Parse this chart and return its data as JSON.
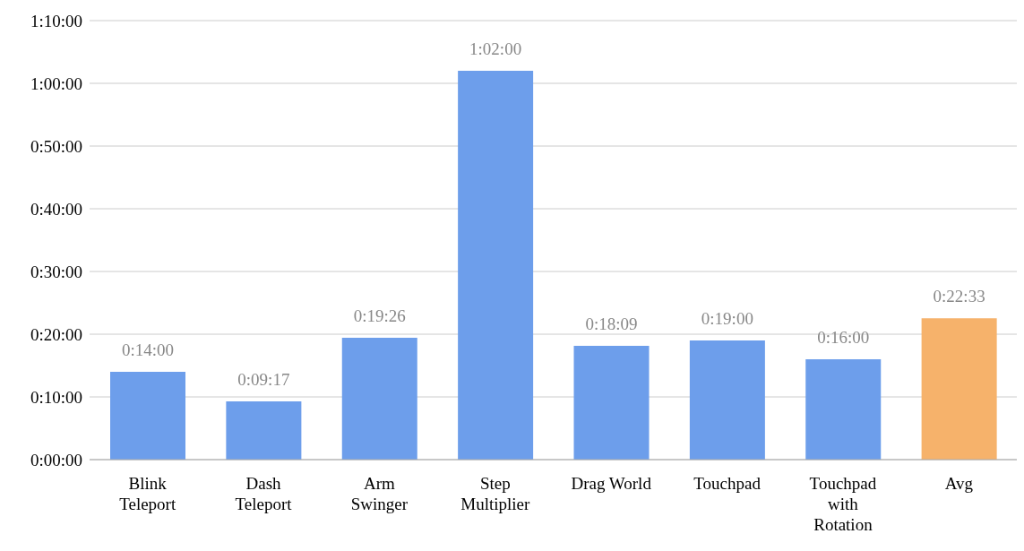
{
  "chart_data": {
    "type": "bar",
    "categories": [
      "Blink Teleport",
      "Dash Teleport",
      "Arm Swinger",
      "Step Multiplier",
      "Drag World",
      "Touchpad",
      "Touchpad with Rotation",
      "Avg"
    ],
    "values": [
      14,
      9.2833,
      19.4333,
      62,
      18.15,
      19,
      16,
      22.55
    ],
    "colors": [
      "#6d9eeb",
      "#6d9eeb",
      "#6d9eeb",
      "#6d9eeb",
      "#6d9eeb",
      "#6d9eeb",
      "#6d9eeb",
      "#f6b26b"
    ],
    "value_labels": [
      "0:14:00",
      "0:09:17",
      "0:19:26",
      "1:02:00",
      "0:18:09",
      "0:19:00",
      "0:16:00",
      "0:22:33"
    ],
    "ylim": [
      0,
      70
    ],
    "yticks": [
      {
        "value": 0,
        "label": "0:00:00"
      },
      {
        "value": 10,
        "label": "0:10:00"
      },
      {
        "value": 20,
        "label": "0:20:00"
      },
      {
        "value": 30,
        "label": "0:30:00"
      },
      {
        "value": 40,
        "label": "0:40:00"
      },
      {
        "value": 50,
        "label": "0:50:00"
      },
      {
        "value": 60,
        "label": "1:00:00"
      },
      {
        "value": 70,
        "label": "1:10:00"
      }
    ],
    "grid": "y"
  }
}
